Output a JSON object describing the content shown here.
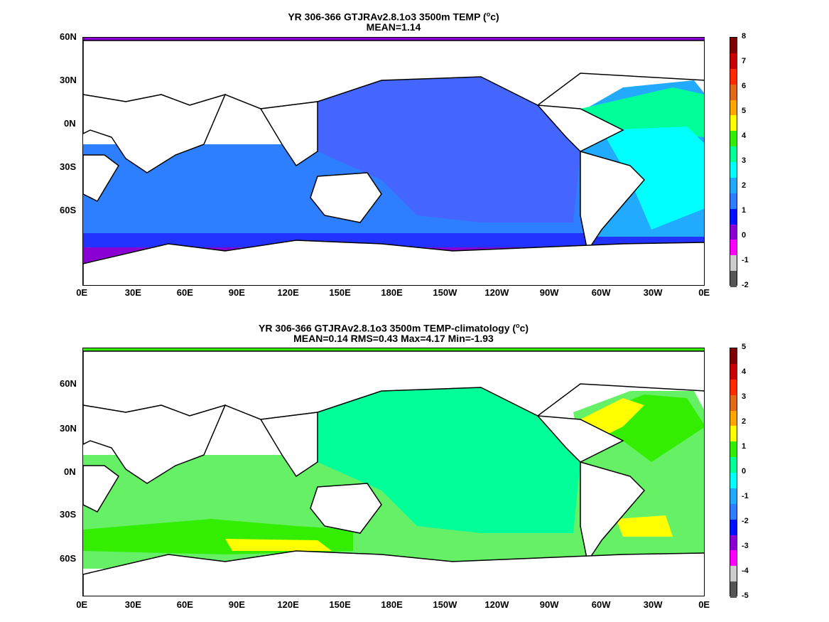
{
  "panels": [
    {
      "title_main": "YR 306-366 GTJRAv2.8.1o3 3500m TEMP (",
      "title_sup": "o",
      "title_end": "c)",
      "stats": "MEAN=1.14",
      "colorbar_labels": [
        "8",
        "7",
        "6",
        "5",
        "4",
        "3",
        "2",
        "1",
        "0",
        "-1",
        "-2"
      ]
    },
    {
      "title_main": "YR 306-366 GTJRAv2.8.1o3 3500m TEMP-climatology (",
      "title_sup": "o",
      "title_end": "c)",
      "stats": "MEAN=0.14   RMS=0.43   Max=4.17   Min=-1.93",
      "colorbar_labels": [
        "5",
        "4",
        "3",
        "2",
        "1",
        "0",
        "-1",
        "-2",
        "-3",
        "-4",
        "-5"
      ]
    }
  ],
  "axes": {
    "lon_labels": [
      "0E",
      "30E",
      "60E",
      "90E",
      "120E",
      "150E",
      "180E",
      "150W",
      "120W",
      "90W",
      "60W",
      "30W",
      "0E"
    ],
    "lat_labels": [
      "60N",
      "30N",
      "0N",
      "30S",
      "60S"
    ]
  },
  "colorbar_colors": [
    "#7f0000",
    "#c80000",
    "#ff2a00",
    "#e06a1a",
    "#ffa500",
    "#ffff00",
    "#33ee00",
    "#00ff99",
    "#00ffff",
    "#22aaff",
    "#2d7fff",
    "#0011ff",
    "#8a00d4",
    "#ff00ff",
    "#cccccc",
    "#555555"
  ],
  "map_colors": {
    "land": "#ffffff",
    "coast": "#000000",
    "p1_pacific": "#4466ff",
    "p1_south": "#2d7fff",
    "p1_ring": "#2233ff",
    "p1_antarctic": "#8a00d4",
    "p1_atlantic_north": "#00ff99",
    "p1_atlantic_cyan": "#00ffff",
    "p1_atlantic_south": "#22aaff",
    "p2_pacific": "#00ff99",
    "p2_light": "#66f066",
    "p2_green": "#33ee00",
    "p2_yellow": "#ffff00"
  }
}
